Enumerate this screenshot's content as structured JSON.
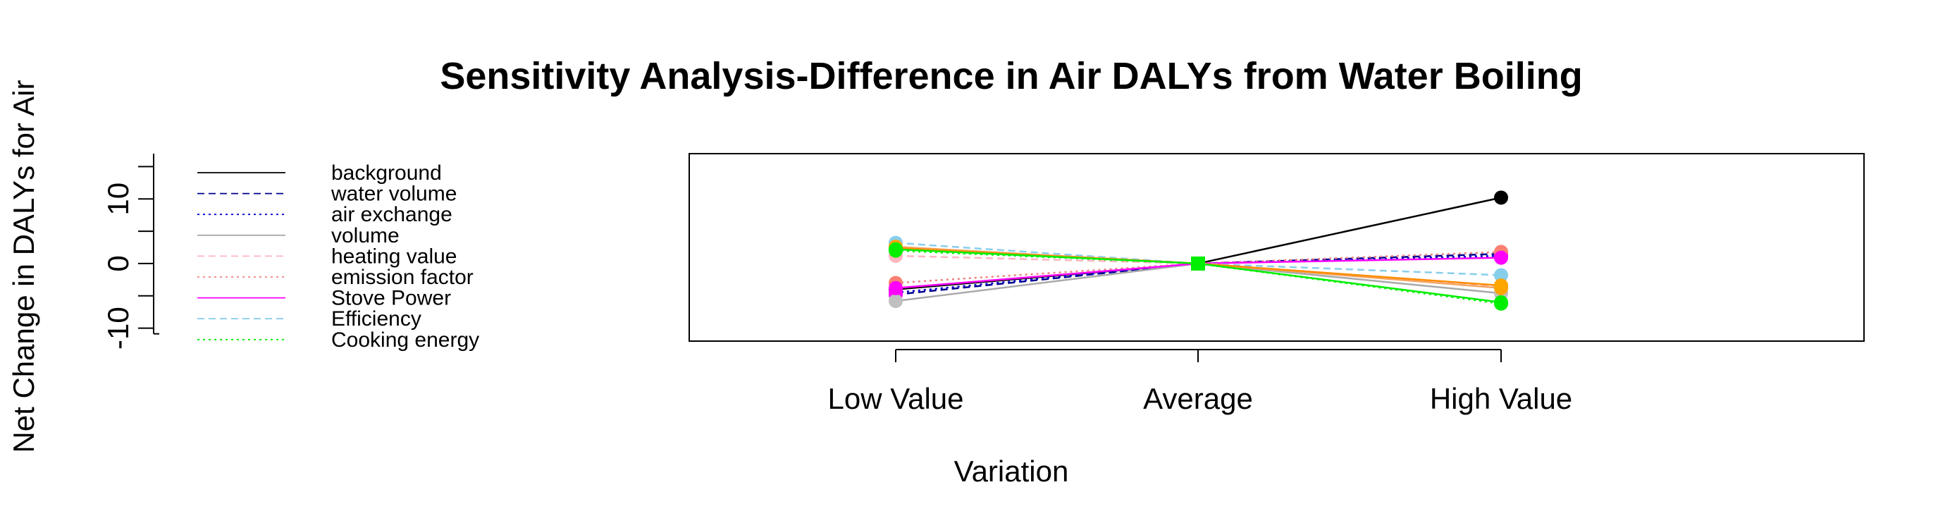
{
  "chart_data": {
    "type": "line",
    "title": "Sensitivity Analysis-Difference in Air DALYs from Water Boiling",
    "xlabel": "Variation",
    "ylabel": "Net Change in DALYs for Air",
    "categories": [
      "Low Value",
      "Average",
      "High Value"
    ],
    "ylim": [
      -12,
      17
    ],
    "yticks": [
      -10,
      0,
      10
    ],
    "grid": false,
    "legend_placement": "top-left",
    "series": [
      {
        "name": "background",
        "values": [
          -4.0,
          0,
          10.2
        ],
        "color": "#000000",
        "line_style": "solid",
        "marker_color": "#000000"
      },
      {
        "name": "water volume",
        "values": [
          -4.8,
          0,
          1.5
        ],
        "color": "#00008B",
        "line_style": "dashed",
        "marker_color": "#FF00FF"
      },
      {
        "name": "air exchange",
        "values": [
          -4.5,
          0,
          1.2
        ],
        "color": "#0000CD",
        "line_style": "dotted",
        "marker_color": "#FF00FF"
      },
      {
        "name": "volume",
        "values": [
          -5.8,
          0,
          -4.6
        ],
        "color": "#A9A9A9",
        "line_style": "solid",
        "marker_color": "#C0C0C0"
      },
      {
        "name": "heating value",
        "values": [
          1.2,
          0,
          -3.6
        ],
        "color": "#FFB6C1",
        "line_style": "dashed",
        "marker_color": "#FFB6C1"
      },
      {
        "name": "emission factor",
        "values": [
          -3.0,
          0,
          1.8
        ],
        "color": "#F08080",
        "line_style": "dotted",
        "marker_color": "#FA8072"
      },
      {
        "name": "Stove Power",
        "values": [
          -3.8,
          0,
          0.9
        ],
        "color": "#FF00FF",
        "line_style": "solid",
        "marker_color": "#FF00FF"
      },
      {
        "name": "Efficiency",
        "values": [
          3.2,
          0,
          -1.8
        ],
        "color": "#87CEEB",
        "line_style": "dashed",
        "marker_color": "#87CEEB"
      },
      {
        "name": "Cooking energy",
        "values": [
          2.0,
          0,
          -6.2
        ],
        "color": "#00EE00",
        "line_style": "dotted",
        "marker_color": "#00EE00"
      },
      {
        "name": "",
        "values": [
          2.6,
          0,
          -3.8
        ],
        "color": "#F4A460",
        "line_style": "solid",
        "marker_color": "#FFA500"
      },
      {
        "name": "",
        "values": [
          2.4,
          0,
          -3.4
        ],
        "color": "#FF8C00",
        "line_style": "solid",
        "marker_color": "#FFA500"
      },
      {
        "name": "",
        "values": [
          2.2,
          0,
          -6.0
        ],
        "color": "#00EE00",
        "line_style": "solid",
        "marker_color": "#00EE00"
      }
    ]
  }
}
